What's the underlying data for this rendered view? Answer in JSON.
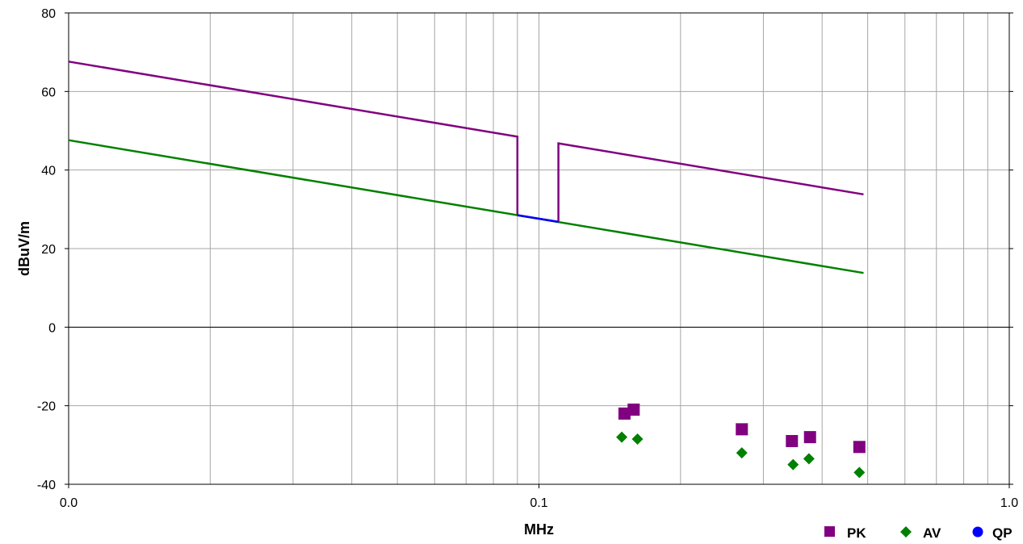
{
  "chart_data": {
    "type": "line",
    "xlabel": "MHz",
    "ylabel": "dBuV/m",
    "xscale": "log",
    "xlim": [
      0.01,
      1.0
    ],
    "ylim": [
      -40,
      80
    ],
    "grid": true,
    "x_tick_labels": [
      "0.0",
      "0.1",
      "1.0"
    ],
    "y_ticks": [
      80,
      60,
      40,
      20,
      0,
      -20,
      -40
    ],
    "limit_lines": [
      {
        "color": "#800080",
        "points": [
          [
            0.01,
            67.6
          ],
          [
            0.09,
            48.5
          ],
          [
            0.09,
            28.5
          ],
          [
            0.11,
            26.8
          ],
          [
            0.11,
            46.8
          ],
          [
            0.49,
            33.8
          ]
        ]
      },
      {
        "color": "#008000",
        "points": [
          [
            0.01,
            47.6
          ],
          [
            0.49,
            13.8
          ]
        ]
      },
      {
        "color": "#0000ff",
        "points": [
          [
            0.09,
            28.5
          ],
          [
            0.11,
            26.8
          ]
        ]
      }
    ],
    "series": [
      {
        "name": "PK",
        "marker": "square",
        "color": "#800080",
        "points": [
          [
            0.152,
            -22.0
          ],
          [
            0.159,
            -21.0
          ],
          [
            0.27,
            -26.0
          ],
          [
            0.345,
            -29.0
          ],
          [
            0.377,
            -28.0
          ],
          [
            0.48,
            -30.5
          ]
        ]
      },
      {
        "name": "AV",
        "marker": "diamond",
        "color": "#008000",
        "points": [
          [
            0.15,
            -28.0
          ],
          [
            0.162,
            -28.5
          ],
          [
            0.27,
            -32.0
          ],
          [
            0.347,
            -35.0
          ],
          [
            0.375,
            -33.5
          ],
          [
            0.48,
            -37.0
          ]
        ]
      },
      {
        "name": "QP",
        "marker": "circle",
        "color": "#0000ff",
        "points": []
      }
    ],
    "legend_position": "bottom-right"
  }
}
